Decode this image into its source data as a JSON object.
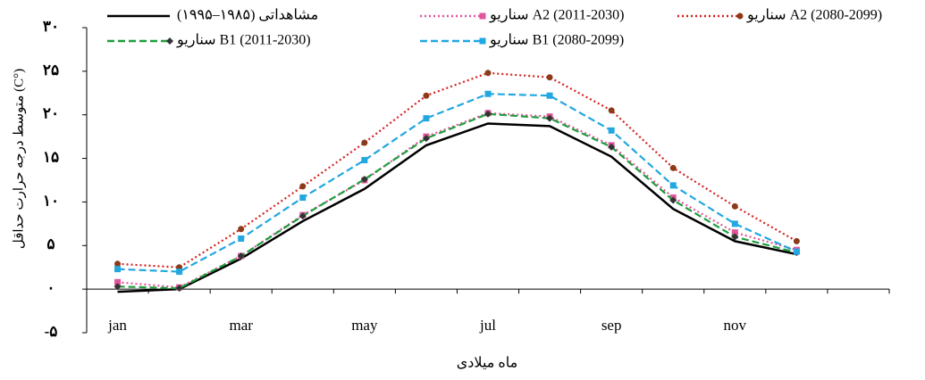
{
  "chart_data": {
    "type": "line",
    "y_label": "متوسط درجه حرارت حداقل (C°)",
    "x_label": "ماه میلادی",
    "categories": [
      "jan",
      null,
      "mar",
      null,
      "may",
      null,
      "jul",
      null,
      "sep",
      null,
      "nov",
      null
    ],
    "ylim": [
      -5,
      30
    ],
    "yticks": [
      {
        "value": -5,
        "label": "-۵"
      },
      {
        "value": 0,
        "label": "۰"
      },
      {
        "value": 5,
        "label": "۵"
      },
      {
        "value": 10,
        "label": "۱۰"
      },
      {
        "value": 15,
        "label": "۱۵"
      },
      {
        "value": 20,
        "label": "۲۰"
      },
      {
        "value": 25,
        "label": "۲۵"
      },
      {
        "value": 30,
        "label": "۳۰"
      }
    ],
    "series": [
      {
        "name": "مشاهداتی (۱۹۸۵–۱۹۹۵)",
        "color": "#000000",
        "dash": "solid",
        "marker": "none",
        "values": [
          -0.3,
          0,
          3.5,
          7.8,
          11.5,
          16.5,
          19,
          18.7,
          15.2,
          9.2,
          5.5,
          4
        ]
      },
      {
        "name": "سناریو A2 (2011-2030)",
        "color": "#e0559a",
        "dash": "dot",
        "marker": "square",
        "values": [
          0.8,
          0.2,
          3.8,
          8.5,
          12.5,
          17.5,
          20.2,
          19.8,
          16.5,
          10.5,
          6.5,
          4.5
        ]
      },
      {
        "name": "سناریو A2 (2080-2099)",
        "color": "#d4211c",
        "dash": "dot",
        "marker": "circle",
        "values": [
          2.9,
          2.5,
          6.9,
          11.8,
          16.8,
          22.2,
          24.8,
          24.3,
          20.5,
          13.9,
          9.5,
          5.5
        ]
      },
      {
        "name": "سناریو B1 (2011-2030)",
        "color": "#1e9e3e",
        "dash": "dash",
        "marker": "diamond",
        "values": [
          0.3,
          0.1,
          3.8,
          8.4,
          12.6,
          17.3,
          20.1,
          19.6,
          16.3,
          10.2,
          6,
          4.2
        ]
      },
      {
        "name": "سناریو B1 (2080-2099)",
        "color": "#22a7e0",
        "dash": "dash",
        "marker": "square",
        "values": [
          2.3,
          2,
          5.8,
          10.5,
          14.8,
          19.6,
          22.4,
          22.2,
          18.2,
          11.9,
          7.5,
          4.3
        ]
      }
    ]
  }
}
